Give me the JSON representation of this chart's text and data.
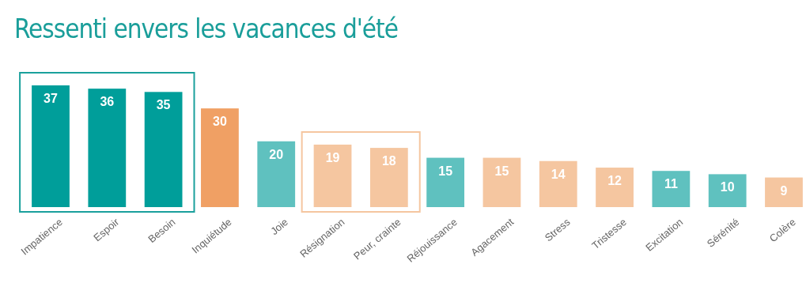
{
  "chart_data": {
    "type": "bar",
    "title": "Ressenti envers les vacances d'été",
    "categories": [
      "Impatience",
      "Espoir",
      "Besoin",
      "Inquiétude",
      "Joie",
      "Résignation",
      "Peur, crainte",
      "Réjouissance",
      "Agacement",
      "Stress",
      "Tristesse",
      "Excitation",
      "Sérénité",
      "Colère"
    ],
    "values": [
      37,
      36,
      35,
      30,
      20,
      19,
      18,
      15,
      15,
      14,
      12,
      11,
      10,
      9
    ],
    "colors": [
      "#009e9a",
      "#009e9a",
      "#009e9a",
      "#f0a064",
      "#5fc1bf",
      "#f5c6a0",
      "#f5c6a0",
      "#5fc1bf",
      "#f5c6a0",
      "#f5c6a0",
      "#f5c6a0",
      "#5fc1bf",
      "#5fc1bf",
      "#f5c6a0"
    ],
    "data_labels": true
  }
}
